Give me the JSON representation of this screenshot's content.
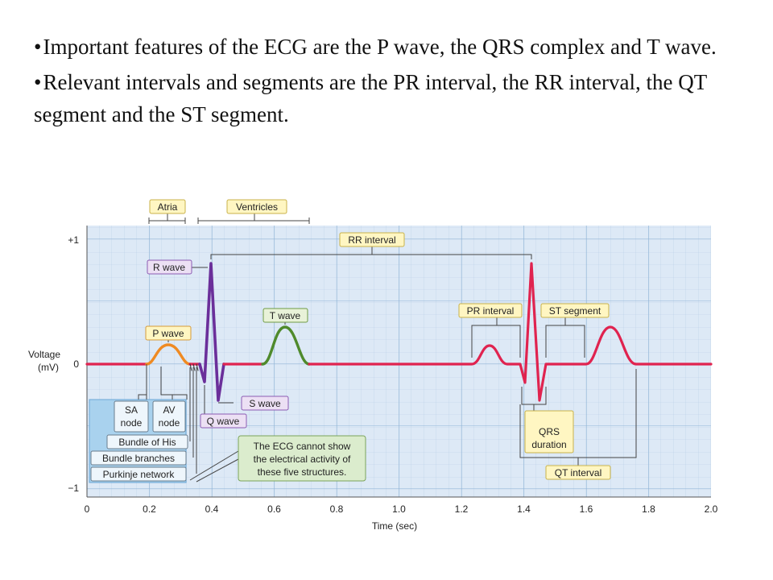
{
  "bullets": [
    "Important features of the ECG are the P wave, the QRS complex and T wave.",
    "Relevant intervals and segments are the PR interval, the RR interval, the QT segment and the ST segment."
  ],
  "bullet_symbol": "•",
  "diagram": {
    "y_axis_label_line1": "Voltage",
    "y_axis_label_line2": "(mV)",
    "y_ticks": [
      {
        "value": 1,
        "label": "+1"
      },
      {
        "value": 0,
        "label": "0"
      },
      {
        "value": -1,
        "label": "−1"
      }
    ],
    "x_axis_label": "Time (sec)",
    "x_ticks": [
      "0",
      "0.2",
      "0.4",
      "0.6",
      "0.8",
      "1.0",
      "1.2",
      "1.4",
      "1.6",
      "1.8",
      "2.0"
    ],
    "labels": {
      "atria": "Atria",
      "ventricles": "Ventricles",
      "rr_interval": "RR interval",
      "r_wave": "R wave",
      "t_wave": "T wave",
      "p_wave": "P wave",
      "s_wave": "S wave",
      "q_wave": "Q wave",
      "pr_interval": "PR interval",
      "st_segment": "ST segment",
      "qrs_line1": "QRS",
      "qrs_line2": "duration",
      "qt_interval": "QT interval",
      "sa_line1": "SA",
      "sa_line2": "node",
      "av_line1": "AV",
      "av_line2": "node",
      "bundle_of_his": "Bundle of His",
      "bundle_branches": "Bundle branches",
      "purkinje": "Purkinje network",
      "note_line1": "The ECG cannot show",
      "note_line2": "the electrical activity of",
      "note_line3": "these five structures."
    },
    "colors": {
      "grid_bg": "#dde9f6",
      "grid_line": "#9fbfdc",
      "trace": "#e0234f",
      "p_wave": "#ef8a22",
      "qrs": "#6b2f9a",
      "t_wave": "#4f8a2c",
      "label_yellow": "#fff6c2",
      "label_purple": "#ece0f4",
      "label_green": "#e8f2d8",
      "box_blue": "#a9d2ee",
      "note_green": "#dbeccd"
    }
  }
}
